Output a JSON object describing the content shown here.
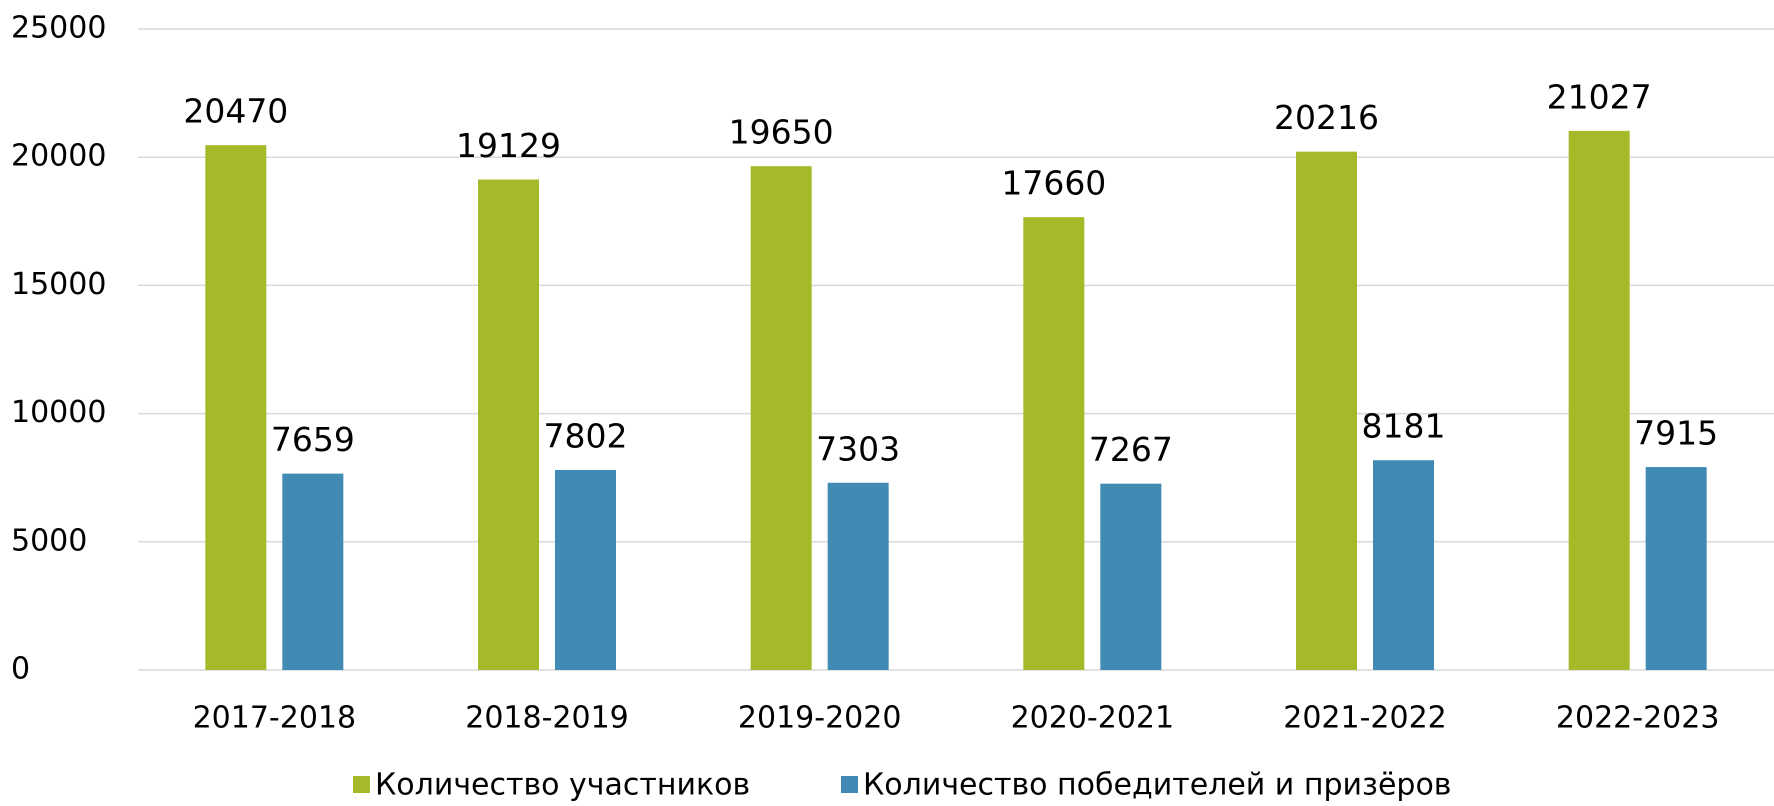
{
  "chart_data": {
    "type": "bar",
    "categories": [
      "2017-2018",
      "2018-2019",
      "2019-2020",
      "2020-2021",
      "2021-2022",
      "2022-2023"
    ],
    "series": [
      {
        "name": "Количество участников",
        "color": "#a5b929",
        "values": [
          20470,
          19129,
          19650,
          17660,
          20216,
          21027
        ]
      },
      {
        "name": "Количество победителей и призёров",
        "color": "#418ab3",
        "values": [
          7659,
          7802,
          7303,
          7267,
          8181,
          7915
        ]
      }
    ],
    "ylim": [
      0,
      25000
    ],
    "yticks": [
      0,
      5000,
      10000,
      15000,
      20000,
      25000
    ],
    "grid": true,
    "legend": "bottom"
  }
}
